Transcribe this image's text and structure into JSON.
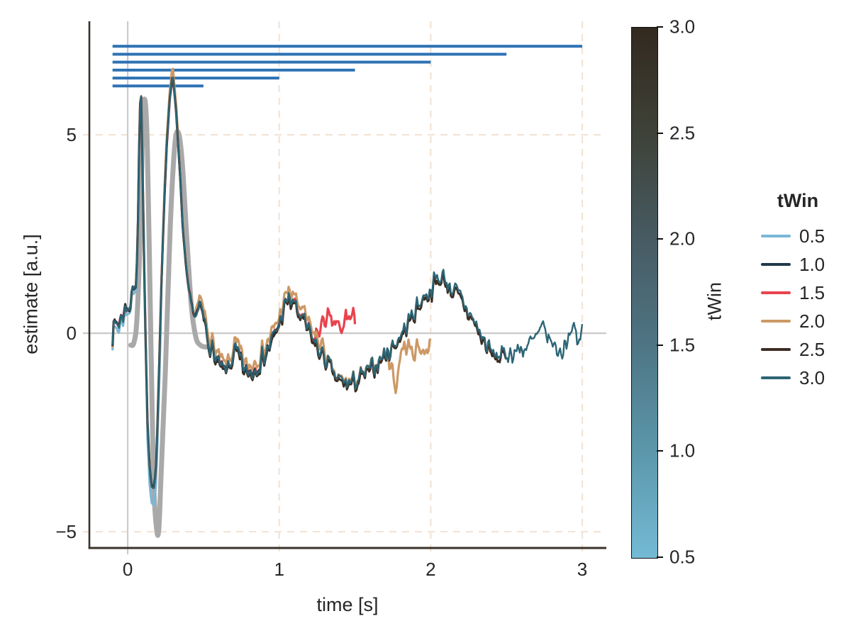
{
  "chart_data": {
    "type": "line",
    "title": "",
    "xlabel": "time [s]",
    "ylabel": "estimate [a.u.]",
    "xlim": [
      -0.253,
      3.159
    ],
    "ylim": [
      -5.41,
      7.86
    ],
    "xticks": [
      0,
      1,
      2,
      3
    ],
    "xtick_labels": [
      "0",
      "1",
      "2",
      "3"
    ],
    "yticks": [
      5,
      0,
      -5
    ],
    "ytick_labels": [
      "5",
      "0",
      "−5"
    ],
    "grid": {
      "dashed_color": "#f2e4d6",
      "dashed_x": [
        1,
        2,
        3
      ],
      "dashed_y": [
        5,
        -5
      ],
      "zero_line_color": "#cbcbcb",
      "zero_x": 0,
      "zero_y": 0
    },
    "spine_color": "#3a332b",
    "text_color": "#262626",
    "window_bars": {
      "color": "#2d72b4",
      "x_start": -0.1,
      "bars": [
        {
          "tWin": "3.0",
          "x_end": 3.0,
          "y": 7.23
        },
        {
          "tWin": "2.5",
          "x_end": 2.5,
          "y": 7.03
        },
        {
          "tWin": "2.0",
          "x_end": 2.0,
          "y": 6.83
        },
        {
          "tWin": "1.5",
          "x_end": 1.5,
          "y": 6.63
        },
        {
          "tWin": "1.0",
          "x_end": 1.0,
          "y": 6.43
        },
        {
          "tWin": "0.5",
          "x_end": 0.5,
          "y": 6.23
        }
      ]
    },
    "reference_curve": {
      "name": "ground-truth",
      "color": "#a9a9a9",
      "width": 7,
      "keypoints": [
        [
          0.02,
          -0.3
        ],
        [
          0.04,
          -0.25
        ],
        [
          0.06,
          0.3
        ],
        [
          0.08,
          2.2
        ],
        [
          0.1,
          5.3
        ],
        [
          0.115,
          5.85
        ],
        [
          0.13,
          4.6
        ],
        [
          0.15,
          0.5
        ],
        [
          0.17,
          -3.6
        ],
        [
          0.19,
          -4.9
        ],
        [
          0.205,
          -4.95
        ],
        [
          0.22,
          -3.6
        ],
        [
          0.25,
          -0.8
        ],
        [
          0.28,
          2.6
        ],
        [
          0.31,
          4.7
        ],
        [
          0.335,
          5.05
        ],
        [
          0.36,
          4.3
        ],
        [
          0.39,
          2.4
        ],
        [
          0.42,
          0.7
        ],
        [
          0.45,
          -0.1
        ],
        [
          0.48,
          -0.3
        ],
        [
          0.52,
          -0.35
        ]
      ]
    },
    "base_keypoints": [
      [
        -0.1,
        -0.05
      ],
      [
        -0.095,
        0.3
      ],
      [
        -0.085,
        0.1
      ],
      [
        -0.075,
        0.3
      ],
      [
        -0.06,
        0.2
      ],
      [
        -0.05,
        0.4
      ],
      [
        -0.04,
        0.35
      ],
      [
        -0.025,
        0.55
      ],
      [
        -0.01,
        0.65
      ],
      [
        0.0,
        0.75
      ],
      [
        0.015,
        0.6
      ],
      [
        0.03,
        1.1
      ],
      [
        0.045,
        1.05
      ],
      [
        0.055,
        1.4
      ],
      [
        0.065,
        2.2
      ],
      [
        0.075,
        4.6
      ],
      [
        0.085,
        6.25
      ],
      [
        0.09,
        5.9
      ],
      [
        0.1,
        3.6
      ],
      [
        0.115,
        0.3
      ],
      [
        0.13,
        -2.2
      ],
      [
        0.145,
        -3.4
      ],
      [
        0.16,
        -3.8
      ],
      [
        0.175,
        -3.85
      ],
      [
        0.19,
        -3.1
      ],
      [
        0.205,
        -1.2
      ],
      [
        0.22,
        0.9
      ],
      [
        0.24,
        3.2
      ],
      [
        0.26,
        5.0
      ],
      [
        0.28,
        6.0
      ],
      [
        0.295,
        6.55
      ],
      [
        0.31,
        6.1
      ],
      [
        0.325,
        5.2
      ],
      [
        0.345,
        4.0
      ],
      [
        0.365,
        2.6
      ],
      [
        0.385,
        1.6
      ],
      [
        0.405,
        1.0
      ],
      [
        0.43,
        0.55
      ],
      [
        0.455,
        0.45
      ],
      [
        0.48,
        0.6
      ],
      [
        0.5,
        0.4
      ],
      [
        0.53,
        -0.1
      ],
      [
        0.56,
        -0.45
      ],
      [
        0.6,
        -0.8
      ],
      [
        0.64,
        -1.0
      ],
      [
        0.68,
        -0.75
      ],
      [
        0.71,
        -0.45
      ],
      [
        0.74,
        -0.65
      ],
      [
        0.78,
        -1.0
      ],
      [
        0.82,
        -0.95
      ],
      [
        0.86,
        -0.75
      ],
      [
        0.9,
        -0.55
      ],
      [
        0.94,
        -0.3
      ],
      [
        0.98,
        0.05
      ],
      [
        1.02,
        0.5
      ],
      [
        1.06,
        0.9
      ],
      [
        1.1,
        0.75
      ],
      [
        1.14,
        0.45
      ],
      [
        1.18,
        0.15
      ],
      [
        1.22,
        -0.1
      ],
      [
        1.26,
        -0.4
      ],
      [
        1.3,
        -0.6
      ],
      [
        1.34,
        -0.9
      ],
      [
        1.38,
        -1.15
      ],
      [
        1.44,
        -1.25
      ],
      [
        1.5,
        -1.2
      ],
      [
        1.56,
        -1.05
      ],
      [
        1.62,
        -0.85
      ],
      [
        1.68,
        -0.6
      ],
      [
        1.74,
        -0.35
      ],
      [
        1.8,
        -0.05
      ],
      [
        1.86,
        0.35
      ],
      [
        1.92,
        0.75
      ],
      [
        1.98,
        1.05
      ],
      [
        2.04,
        1.35
      ],
      [
        2.08,
        1.45
      ],
      [
        2.12,
        1.2
      ],
      [
        2.16,
        1.05
      ],
      [
        2.22,
        0.75
      ],
      [
        2.28,
        0.35
      ],
      [
        2.34,
        -0.1
      ],
      [
        2.4,
        -0.5
      ],
      [
        2.46,
        -0.55
      ],
      [
        2.52,
        -0.5
      ],
      [
        2.6,
        -0.4
      ],
      [
        2.68,
        -0.2
      ],
      [
        2.74,
        0.1
      ],
      [
        2.8,
        -0.25
      ],
      [
        2.86,
        -0.55
      ],
      [
        2.9,
        -0.1
      ],
      [
        2.94,
        0.2
      ],
      [
        2.97,
        -0.35
      ],
      [
        3.0,
        0.1
      ]
    ],
    "noise": {
      "amplitude": 0.3,
      "dt": 0.007,
      "seed": 7,
      "series_jitter": 0.05,
      "calm_range": [
        0.055,
        0.44
      ],
      "calm_scale": 0.35
    },
    "series": [
      {
        "name": "0.5",
        "color": "#7ab7d6",
        "width": 3.2,
        "t_start": -0.1,
        "t_end": 0.5,
        "adjustments": [
          [
            -0.1,
            0.12,
            -0.12
          ],
          [
            0.125,
            0.215,
            -0.45
          ]
        ],
        "override_keypoints": []
      },
      {
        "name": "1.0",
        "color": "#21394a",
        "width": 2.6,
        "t_start": -0.1,
        "t_end": 1.0,
        "adjustments": [],
        "override_keypoints": []
      },
      {
        "name": "1.5",
        "color": "#e8434e",
        "width": 3.2,
        "t_start": -0.1,
        "t_end": 1.5,
        "adjustments": [],
        "override_keypoints": [
          [
            1.24,
            -0.05
          ],
          [
            1.28,
            0.2
          ],
          [
            1.32,
            0.45
          ],
          [
            1.35,
            0.1
          ],
          [
            1.38,
            0.35
          ],
          [
            1.41,
            -0.15
          ],
          [
            1.44,
            0.5
          ],
          [
            1.47,
            0.3
          ],
          [
            1.5,
            0.45
          ]
        ]
      },
      {
        "name": "2.0",
        "color": "#cc9966",
        "width": 3.2,
        "t_start": -0.1,
        "t_end": 2.0,
        "adjustments": [
          [
            0.24,
            0.34,
            0.2
          ],
          [
            0.45,
            1.3,
            0.18
          ]
        ],
        "override_keypoints": [
          [
            1.7,
            -0.45
          ],
          [
            1.74,
            -0.8
          ],
          [
            1.77,
            -1.45
          ],
          [
            1.8,
            -0.5
          ],
          [
            1.84,
            -0.3
          ],
          [
            1.88,
            -0.5
          ],
          [
            1.92,
            -0.3
          ],
          [
            1.96,
            -0.5
          ],
          [
            2.0,
            -0.15
          ]
        ]
      },
      {
        "name": "2.5",
        "color": "#3d2d22",
        "width": 3.0,
        "t_start": -0.1,
        "t_end": 2.5,
        "adjustments": [
          [
            0.5,
            2.5,
            -0.07
          ]
        ],
        "override_keypoints": []
      },
      {
        "name": "3.0",
        "color": "#2c6575",
        "width": 2.4,
        "t_start": -0.1,
        "t_end": 3.0,
        "adjustments": [],
        "override_keypoints": []
      }
    ],
    "draw_order": [
      0,
      2,
      3,
      4,
      1,
      5
    ],
    "legend": {
      "title": "tWin",
      "entries": [
        {
          "label": "0.5",
          "color": "#7ab7d6"
        },
        {
          "label": "1.0",
          "color": "#21394a"
        },
        {
          "label": "1.5",
          "color": "#e8434e"
        },
        {
          "label": "2.0",
          "color": "#cc9966"
        },
        {
          "label": "2.5",
          "color": "#3d2d22"
        },
        {
          "label": "3.0",
          "color": "#2c6575"
        }
      ]
    },
    "colorbar": {
      "label": "tWin",
      "min": 0.5,
      "max": 3.0,
      "ticks": [
        3.0,
        2.5,
        2.0,
        1.5,
        1.0,
        0.5
      ],
      "tick_labels": [
        "3.0",
        "2.5",
        "2.0",
        "1.5",
        "1.0",
        "0.5"
      ],
      "gradient_top_to_bottom": [
        "#33291f",
        "#3e4238",
        "#475b63",
        "#4e7584",
        "#5b97ab",
        "#74bad4"
      ]
    }
  }
}
